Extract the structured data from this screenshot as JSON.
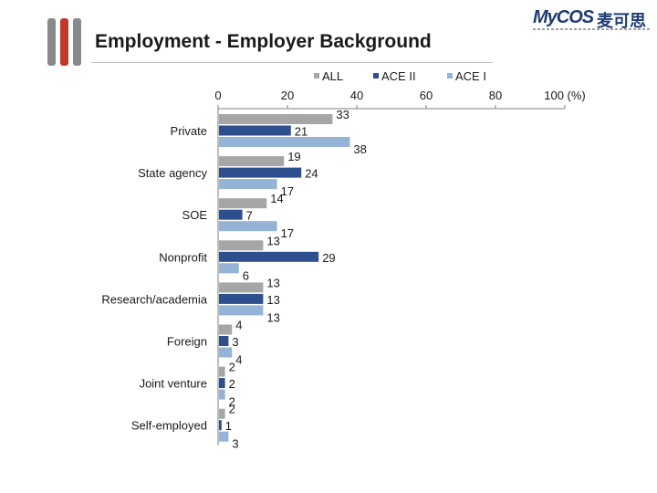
{
  "header": {
    "title": "Employment - Employer Background"
  },
  "logo": {
    "brand_latin": "MyCOS",
    "brand_cn": "麦可思"
  },
  "colors": {
    "ALL": "#a6a6a6",
    "ACE II": "#2e4f8f",
    "ACE I": "#95b3d7",
    "axis": "#7f7f7f"
  },
  "chart_data": {
    "type": "bar",
    "orientation": "horizontal",
    "title": "Employment - Employer Background",
    "xlabel": "",
    "ylabel": "",
    "axis_unit": "(%)",
    "xlim": [
      0,
      100
    ],
    "x_ticks": [
      0,
      20,
      40,
      60,
      80,
      100
    ],
    "legend_position": "top",
    "grid": false,
    "categories": [
      "Private",
      "State agency",
      "SOE",
      "Nonprofit",
      "Research/academia",
      "Foreign",
      "Joint venture",
      "Self-employed"
    ],
    "series": [
      {
        "name": "ALL",
        "values": [
          33,
          19,
          14,
          13,
          13,
          4,
          2,
          2
        ]
      },
      {
        "name": "ACE II",
        "values": [
          21,
          24,
          7,
          29,
          13,
          3,
          2,
          1
        ]
      },
      {
        "name": "ACE I",
        "values": [
          38,
          17,
          17,
          6,
          13,
          4,
          2,
          3
        ]
      }
    ]
  }
}
